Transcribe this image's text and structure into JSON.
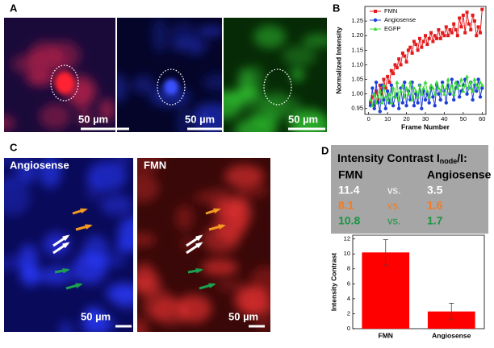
{
  "panels": {
    "a": {
      "label": "A",
      "scale_labels": [
        "50 µm",
        "50 µm",
        "50 µm"
      ]
    },
    "b": {
      "label": "B"
    },
    "c": {
      "label": "C",
      "left_title": "Angiosense",
      "right_title": "FMN",
      "scale_labels": [
        "50 µm",
        "50 µm"
      ]
    },
    "d": {
      "label": "D"
    }
  },
  "table": {
    "title": "Intensity Contrast I",
    "title_sub": "node",
    "title_end": "/I:",
    "headers": [
      "FMN",
      "Angiosense"
    ],
    "rows": [
      [
        11.4,
        "vs.",
        3.5
      ],
      [
        8.1,
        "vs.",
        1.6
      ],
      [
        10.8,
        "vs.",
        1.7
      ]
    ],
    "row_colors": [
      "#ffffff",
      "#f47b20",
      "#1a9641"
    ]
  },
  "chart_data": [
    {
      "type": "line",
      "xlabel": "Frame Number",
      "ylabel": "Normalized Intensity",
      "x": [
        1,
        2,
        3,
        4,
        5,
        6,
        7,
        8,
        9,
        10,
        11,
        12,
        13,
        14,
        15,
        16,
        17,
        18,
        19,
        20,
        21,
        22,
        23,
        24,
        25,
        26,
        27,
        28,
        29,
        30,
        31,
        32,
        33,
        34,
        35,
        36,
        37,
        38,
        39,
        40,
        41,
        42,
        43,
        44,
        45,
        46,
        47,
        48,
        49,
        50,
        51,
        52,
        53,
        54,
        55,
        56,
        57,
        58,
        59,
        60
      ],
      "xlim": [
        -2,
        62
      ],
      "xticks": [
        0,
        10,
        20,
        30,
        40,
        50,
        60
      ],
      "ylim": [
        0.93,
        1.3
      ],
      "yticks": [
        0.95,
        {
          "value": 1,
          "label": "1.00"
        },
        1.05,
        {
          "value": 1.1,
          "label": "1.10"
        },
        1.15,
        {
          "value": 1.2,
          "label": "1.20"
        },
        1.25
      ],
      "legend": "top-left",
      "series": [
        {
          "name": "FMN",
          "color": "#e41a1c",
          "marker": "square",
          "values": [
            0.97,
            0.99,
            0.96,
            1.01,
            0.98,
            1.03,
            1.0,
            1.05,
            1.02,
            1.06,
            1.04,
            1.08,
            1.07,
            1.1,
            1.09,
            1.12,
            1.1,
            1.14,
            1.13,
            1.11,
            1.15,
            1.16,
            1.14,
            1.18,
            1.17,
            1.15,
            1.19,
            1.16,
            1.18,
            1.2,
            1.17,
            1.19,
            1.21,
            1.18,
            1.2,
            1.19,
            1.22,
            1.19,
            1.21,
            1.2,
            1.23,
            1.2,
            1.22,
            1.21,
            1.24,
            1.22,
            1.2,
            1.26,
            1.23,
            1.27,
            1.21,
            1.28,
            1.24,
            1.22,
            1.27,
            1.25,
            1.2,
            1.23,
            1.21,
            1.29
          ]
        },
        {
          "name": "Angiosense",
          "color": "#1f3fd8",
          "marker": "circle",
          "values": [
            0.96,
            1.02,
            0.95,
            1.04,
            0.97,
            0.94,
            1.03,
            0.98,
            0.95,
            1.01,
            0.97,
            1.03,
            0.96,
            0.99,
            1.0,
            0.95,
            1.02,
            0.97,
            1.04,
            0.96,
            1.01,
            0.98,
            1.04,
            0.96,
            1.0,
            0.97,
            1.03,
            0.95,
            1.01,
            0.98,
            1.0,
            0.97,
            1.02,
            0.99,
            0.96,
            1.03,
            1.0,
            0.98,
            1.04,
            1.01,
            0.97,
            1.03,
            1.0,
            1.05,
            0.98,
            1.02,
            1.04,
            0.99,
            1.01,
            1.03,
            1.05,
            1.0,
            1.02,
            1.04,
            0.98,
            1.03,
            1.01,
            1.05,
            0.99,
            1.02
          ]
        },
        {
          "name": "EGFP",
          "color": "#3cd83c",
          "marker": "triangle",
          "values": [
            0.98,
            0.96,
            1.0,
            0.97,
            0.99,
            1.01,
            0.97,
            1.03,
            0.99,
            0.98,
            1.0,
            0.97,
            1.02,
            0.99,
            1.04,
            0.98,
            1.01,
            1.03,
            0.99,
            1.02,
            1.0,
            1.04,
            0.98,
            1.02,
            1.01,
            0.99,
            1.03,
            1.0,
            1.02,
            1.04,
            1.01,
            0.99,
            1.03,
            1.02,
            1.0,
            1.04,
            1.02,
            1.01,
            1.03,
            1.0,
            1.02,
            1.05,
            1.01,
            1.03,
            1.0,
            1.04,
            1.02,
            1.03,
            1.05,
            1.01,
            1.03,
            1.06,
            1.02,
            1.04,
            1.01,
            1.05,
            1.03,
            1.02,
            1.04,
            1.03
          ]
        }
      ]
    },
    {
      "type": "bar",
      "ylabel": "Intensity Contrast",
      "categories": [
        "FMN",
        "Angiosense"
      ],
      "values": [
        10.2,
        2.3
      ],
      "errors": [
        1.7,
        1.1
      ],
      "color": "#ff0000",
      "ylim": [
        0,
        12.5
      ],
      "yticks": [
        0,
        2,
        4,
        6,
        8,
        10,
        12
      ]
    }
  ]
}
